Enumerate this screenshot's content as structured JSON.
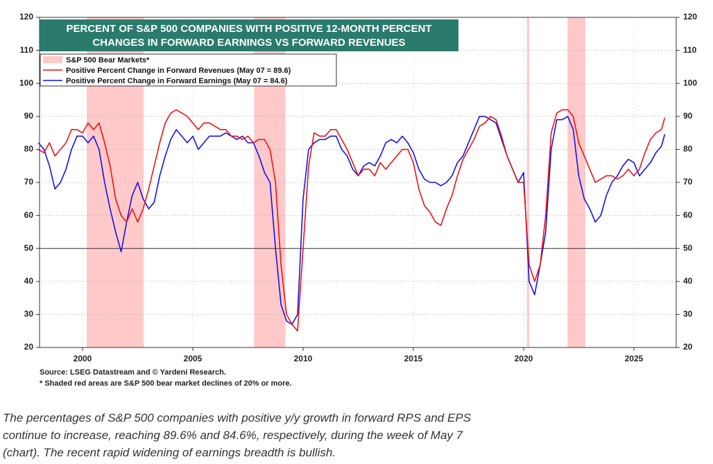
{
  "chart_data": {
    "type": "line",
    "title": [
      "PERCENT OF S&P 500 COMPANIES WITH POSITIVE 12-MONTH PERCENT",
      "CHANGES IN FORWARD EARNINGS VS FORWARD REVENUES"
    ],
    "notes": [
      "Source: LSEG Datastream and © Yardeni Research.",
      "* Shaded red areas are S&P 500 bear market declines of 20% or more."
    ],
    "caption": "The percentages of S&P 500 companies with positive y/y growth in forward RPS and EPS continue to increase, reaching 89.6% and 84.6%, respectively, during the week of May 7 (chart). The recent rapid widening of earnings breadth is bullish.",
    "xlim": [
      1998.05,
      2026.92
    ],
    "xticks": [
      2000,
      2005,
      2010,
      2015,
      2020,
      2025
    ],
    "ylim": [
      20,
      120
    ],
    "yticks": [
      20,
      30,
      40,
      50,
      60,
      70,
      80,
      90,
      100,
      110,
      120
    ],
    "grid": true,
    "reference_line": 50,
    "shaded": {
      "name": "S&P 500 Bear Markets*",
      "color": "#ffc9c9",
      "ranges": [
        [
          2000.19,
          2002.77
        ],
        [
          2007.78,
          2009.2
        ],
        [
          2020.15,
          2020.25
        ],
        [
          2021.99,
          2022.8
        ]
      ]
    },
    "x": [
      1998.0,
      1998.25,
      1998.5,
      1998.75,
      1999.0,
      1999.25,
      1999.5,
      1999.75,
      2000.0,
      2000.25,
      2000.5,
      2000.75,
      2001.0,
      2001.25,
      2001.5,
      2001.75,
      2002.0,
      2002.25,
      2002.5,
      2002.75,
      2003.0,
      2003.25,
      2003.5,
      2003.75,
      2004.0,
      2004.25,
      2004.5,
      2004.75,
      2005.0,
      2005.25,
      2005.5,
      2005.75,
      2006.0,
      2006.25,
      2006.5,
      2006.75,
      2007.0,
      2007.25,
      2007.5,
      2007.75,
      2008.0,
      2008.25,
      2008.5,
      2008.75,
      2009.0,
      2009.25,
      2009.5,
      2009.75,
      2010.0,
      2010.25,
      2010.5,
      2010.75,
      2011.0,
      2011.25,
      2011.5,
      2011.75,
      2012.0,
      2012.25,
      2012.5,
      2012.75,
      2013.0,
      2013.25,
      2013.5,
      2013.75,
      2014.0,
      2014.25,
      2014.5,
      2014.75,
      2015.0,
      2015.25,
      2015.5,
      2015.75,
      2016.0,
      2016.25,
      2016.5,
      2016.75,
      2017.0,
      2017.25,
      2017.5,
      2017.75,
      2018.0,
      2018.25,
      2018.5,
      2018.75,
      2019.0,
      2019.25,
      2019.5,
      2019.75,
      2020.0,
      2020.25,
      2020.5,
      2020.75,
      2021.0,
      2021.25,
      2021.5,
      2021.75,
      2022.0,
      2022.25,
      2022.5,
      2022.75,
      2023.0,
      2023.25,
      2023.5,
      2023.75,
      2024.0,
      2024.25,
      2024.5,
      2024.75,
      2025.0,
      2025.25,
      2025.5,
      2025.75,
      2026.0,
      2026.25,
      2026.4
    ],
    "series": [
      {
        "name": "Positive Percent Change in Forward Revenues (May 07 = 89.6)",
        "color": "#ee1111",
        "values": [
          80,
          79,
          82,
          78,
          80,
          82,
          86,
          86,
          85,
          88,
          86,
          88,
          82,
          75,
          65,
          60,
          58,
          62,
          58,
          62,
          68,
          75,
          82,
          88,
          91,
          92,
          91,
          90,
          88,
          86,
          88,
          88,
          87,
          86,
          86,
          84,
          84,
          83,
          84,
          82,
          83,
          83,
          80,
          70,
          45,
          30,
          27,
          25,
          50,
          75,
          85,
          84,
          84,
          86,
          86,
          83,
          80,
          76,
          72,
          74,
          74,
          72,
          76,
          74,
          76,
          78,
          80,
          80,
          76,
          68,
          63,
          61,
          58,
          57,
          62,
          66,
          72,
          77,
          80,
          83,
          87,
          88,
          90,
          89,
          84,
          78,
          74,
          70,
          70,
          45,
          40,
          45,
          60,
          85,
          91,
          92,
          92,
          90,
          82,
          78,
          74,
          70,
          71,
          72,
          72,
          71,
          72,
          74,
          72,
          74,
          79,
          83,
          85,
          86,
          89.6
        ]
      },
      {
        "name": "Positive Percent Change in Forward Earnings (May 07 = 84.6)",
        "color": "#1111ee",
        "values": [
          82,
          80,
          75,
          68,
          70,
          74,
          80,
          84,
          84,
          82,
          84,
          80,
          70,
          62,
          55,
          49,
          58,
          66,
          70,
          65,
          62,
          64,
          72,
          78,
          83,
          86,
          84,
          82,
          84,
          80,
          82,
          84,
          84,
          84,
          85,
          84,
          83,
          84,
          82,
          82,
          78,
          73,
          70,
          50,
          33,
          28,
          27,
          30,
          65,
          80,
          82,
          83,
          83,
          84,
          84,
          80,
          78,
          74,
          72,
          75,
          76,
          75,
          78,
          82,
          83,
          82,
          84,
          82,
          79,
          74,
          71,
          70,
          70,
          69,
          70,
          72,
          76,
          78,
          82,
          86,
          90,
          90,
          89,
          88,
          83,
          78,
          74,
          70,
          73,
          40,
          36,
          45,
          55,
          80,
          89,
          89,
          90,
          86,
          72,
          65,
          62,
          58,
          60,
          66,
          70,
          72,
          75,
          77,
          76,
          72,
          74,
          76,
          79,
          81,
          84.6
        ]
      }
    ]
  }
}
